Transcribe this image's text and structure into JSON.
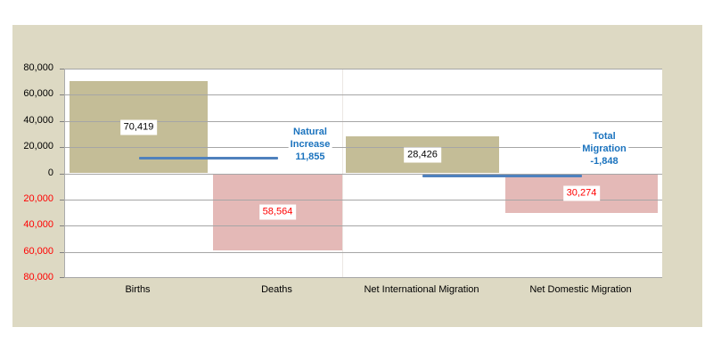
{
  "chart_data": {
    "type": "bar",
    "title": "",
    "categories": [
      "Births",
      "Deaths",
      "Net International Migration",
      "Net Domestic Migration"
    ],
    "values": [
      70419,
      -58564,
      28426,
      -30274
    ],
    "bar_data_labels": [
      "70,419",
      "58,564",
      "28,426",
      "30,274"
    ],
    "bar_label_colors": [
      "#000000",
      "#FF0000",
      "#000000",
      "#FF0000"
    ],
    "y_axis": {
      "min": -80000,
      "max": 80000,
      "step": 20000,
      "tick_labels": [
        "80,000",
        "60,000",
        "40,000",
        "20,000",
        "0",
        "20,000",
        "40,000",
        "60,000",
        "80,000"
      ],
      "positive_label_color": "#000000",
      "negative_label_color": "#FF0000"
    },
    "annotations": [
      {
        "label_lines": [
          "Natural",
          "Increase",
          "11,855"
        ],
        "value": 11855,
        "from_category": "Births",
        "to_category": "Deaths"
      },
      {
        "label_lines": [
          "Total",
          "Migration",
          "-1,848"
        ],
        "value": -1848,
        "from_category": "Net International Migration",
        "to_category": "Net Domestic Migration"
      }
    ],
    "legend": false,
    "gridlines_over_bars": true,
    "colors": {
      "positive_bar": "#C4BD97",
      "negative_bar": "#E4B9B7",
      "panel_background": "#DDD9C3",
      "plot_background": "#FFFFFF",
      "gridline": "#A6A6A6",
      "tick": "#808080",
      "category_divider": "#ECE7E3",
      "annotation_line": "#4F81BD",
      "annotation_text": "#1B73BE"
    }
  }
}
